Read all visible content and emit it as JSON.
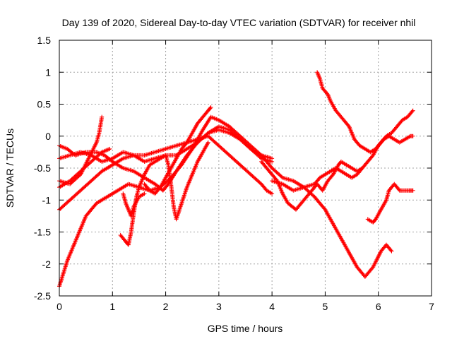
{
  "chart_data": {
    "type": "scatter",
    "title": "Day 139 of 2020, Sidereal Day-to-day VTEC variation (SDTVAR) for receiver nhil",
    "xlabel": "GPS time / hours",
    "ylabel": "SDTVAR / TECUs",
    "xlim": [
      0,
      7
    ],
    "ylim": [
      -2.5,
      1.5
    ],
    "xticks": [
      0,
      1,
      2,
      3,
      4,
      5,
      6,
      7
    ],
    "yticks": [
      -2.5,
      -2,
      -1.5,
      -1,
      -0.5,
      0,
      0.5,
      1,
      1.5
    ],
    "ytick_labels": [
      "-2.5",
      "-2",
      "-1.5",
      "-1",
      "-0.5",
      "0",
      "0.5",
      "1",
      "1.5"
    ],
    "grid": true,
    "marker": "plus",
    "color": "#ff0000",
    "series": [
      {
        "name": "s1",
        "points": [
          [
            0,
            -2.35
          ],
          [
            0.15,
            -1.95
          ],
          [
            0.35,
            -1.55
          ],
          [
            0.5,
            -1.25
          ],
          [
            0.7,
            -1.05
          ],
          [
            0.9,
            -0.95
          ],
          [
            1.1,
            -0.85
          ],
          [
            1.3,
            -0.75
          ],
          [
            1.5,
            -0.8
          ],
          [
            1.7,
            -0.85
          ],
          [
            1.9,
            -0.8
          ],
          [
            2.1,
            -0.65
          ],
          [
            2.3,
            -0.45
          ],
          [
            2.5,
            -0.2
          ],
          [
            2.7,
            0.1
          ],
          [
            2.85,
            0.3
          ],
          [
            3.0,
            0.25
          ],
          [
            3.2,
            0.15
          ],
          [
            3.4,
            0.0
          ],
          [
            3.6,
            -0.15
          ],
          [
            3.8,
            -0.3
          ],
          [
            4.0,
            -0.5
          ],
          [
            4.2,
            -0.65
          ],
          [
            4.4,
            -0.7
          ],
          [
            4.6,
            -0.8
          ],
          [
            4.8,
            -0.95
          ],
          [
            5.0,
            -1.15
          ],
          [
            5.2,
            -1.45
          ],
          [
            5.4,
            -1.75
          ],
          [
            5.6,
            -2.05
          ],
          [
            5.75,
            -2.2
          ],
          [
            5.9,
            -2.05
          ],
          [
            6.05,
            -1.8
          ],
          [
            6.15,
            -1.7
          ],
          [
            6.25,
            -1.8
          ]
        ]
      },
      {
        "name": "s2",
        "points": [
          [
            0,
            -1.15
          ],
          [
            0.2,
            -1.0
          ],
          [
            0.4,
            -0.85
          ],
          [
            0.6,
            -0.7
          ],
          [
            0.8,
            -0.55
          ],
          [
            1.0,
            -0.45
          ],
          [
            1.2,
            -0.35
          ],
          [
            1.4,
            -0.3
          ],
          [
            1.6,
            -0.3
          ],
          [
            1.8,
            -0.25
          ],
          [
            2.0,
            -0.2
          ],
          [
            2.2,
            -0.15
          ],
          [
            2.4,
            -0.1
          ],
          [
            2.6,
            -0.05
          ],
          [
            2.8,
            0.0
          ],
          [
            3.0,
            -0.15
          ],
          [
            3.2,
            -0.3
          ],
          [
            3.4,
            -0.45
          ],
          [
            3.6,
            -0.6
          ],
          [
            3.8,
            -0.75
          ],
          [
            3.9,
            -0.85
          ],
          [
            4.0,
            -0.9
          ]
        ]
      },
      {
        "name": "s3",
        "points": [
          [
            0,
            -0.15
          ],
          [
            0.15,
            -0.2
          ],
          [
            0.3,
            -0.3
          ],
          [
            0.5,
            -0.25
          ],
          [
            0.7,
            -0.25
          ],
          [
            0.85,
            -0.3
          ],
          [
            1.0,
            -0.4
          ],
          [
            1.2,
            -0.5
          ],
          [
            1.4,
            -0.55
          ],
          [
            1.6,
            -0.65
          ],
          [
            1.8,
            -0.75
          ],
          [
            1.95,
            -0.85
          ],
          [
            2.05,
            -0.75
          ],
          [
            2.2,
            -0.55
          ],
          [
            2.4,
            -0.3
          ],
          [
            2.6,
            -0.1
          ],
          [
            2.8,
            0.05
          ],
          [
            3.0,
            0.1
          ],
          [
            3.2,
            0.05
          ],
          [
            3.4,
            -0.05
          ],
          [
            3.6,
            -0.2
          ],
          [
            3.8,
            -0.35
          ],
          [
            4.0,
            -0.4
          ]
        ]
      },
      {
        "name": "s4",
        "points": [
          [
            0,
            -0.35
          ],
          [
            0.2,
            -0.3
          ],
          [
            0.4,
            -0.25
          ],
          [
            0.6,
            -0.3
          ],
          [
            0.8,
            -0.4
          ],
          [
            1.0,
            -0.35
          ],
          [
            1.2,
            -0.25
          ],
          [
            1.4,
            -0.3
          ],
          [
            1.6,
            -0.4
          ],
          [
            1.8,
            -0.35
          ],
          [
            2.0,
            -0.3
          ],
          [
            2.2,
            -0.3
          ],
          [
            2.4,
            -0.2
          ],
          [
            2.6,
            -0.1
          ],
          [
            2.8,
            0.05
          ],
          [
            3.0,
            0.15
          ],
          [
            3.2,
            0.1
          ],
          [
            3.4,
            -0.05
          ],
          [
            3.6,
            -0.2
          ],
          [
            3.8,
            -0.3
          ],
          [
            4.0,
            -0.35
          ]
        ]
      },
      {
        "name": "s5",
        "points": [
          [
            0,
            -0.7
          ],
          [
            0.2,
            -0.75
          ],
          [
            0.4,
            -0.6
          ],
          [
            0.55,
            -0.35
          ],
          [
            0.7,
            -0.1
          ],
          [
            0.75,
            0.05
          ],
          [
            0.8,
            0.3
          ]
        ]
      },
      {
        "name": "s6",
        "points": [
          [
            0,
            -0.8
          ],
          [
            0.2,
            -0.7
          ],
          [
            0.4,
            -0.55
          ],
          [
            0.6,
            -0.4
          ],
          [
            0.8,
            -0.25
          ],
          [
            0.95,
            -0.2
          ]
        ]
      },
      {
        "name": "s7",
        "points": [
          [
            1.2,
            -0.9
          ],
          [
            1.25,
            -1.05
          ],
          [
            1.3,
            -1.15
          ],
          [
            1.35,
            -1.25
          ],
          [
            1.4,
            -1.1
          ],
          [
            1.5,
            -0.95
          ],
          [
            1.6,
            -0.9
          ]
        ]
      },
      {
        "name": "s8",
        "points": [
          [
            1.15,
            -1.55
          ],
          [
            1.25,
            -1.65
          ],
          [
            1.3,
            -1.7
          ],
          [
            1.35,
            -1.5
          ],
          [
            1.4,
            -1.2
          ],
          [
            1.45,
            -0.95
          ],
          [
            1.5,
            -0.8
          ],
          [
            1.55,
            -0.7
          ],
          [
            1.6,
            -0.6
          ],
          [
            1.7,
            -0.45
          ],
          [
            1.8,
            -0.4
          ],
          [
            1.9,
            -0.35
          ],
          [
            2.0,
            -0.3
          ],
          [
            2.05,
            -0.45
          ],
          [
            2.1,
            -0.75
          ],
          [
            2.15,
            -1.1
          ],
          [
            2.2,
            -1.3
          ],
          [
            2.3,
            -1.05
          ],
          [
            2.4,
            -0.8
          ],
          [
            2.5,
            -0.6
          ],
          [
            2.6,
            -0.4
          ],
          [
            2.7,
            -0.25
          ],
          [
            2.8,
            -0.1
          ]
        ]
      },
      {
        "name": "s9",
        "points": [
          [
            1.6,
            -0.75
          ],
          [
            1.7,
            -0.85
          ],
          [
            1.8,
            -0.9
          ],
          [
            1.9,
            -0.8
          ],
          [
            2.0,
            -0.65
          ],
          [
            2.1,
            -0.5
          ],
          [
            2.2,
            -0.35
          ],
          [
            2.3,
            -0.2
          ],
          [
            2.4,
            -0.1
          ],
          [
            2.5,
            0.05
          ],
          [
            2.6,
            0.2
          ],
          [
            2.7,
            0.3
          ],
          [
            2.8,
            0.4
          ],
          [
            2.85,
            0.45
          ]
        ]
      },
      {
        "name": "s10",
        "points": [
          [
            4.0,
            -0.7
          ],
          [
            4.2,
            -0.75
          ],
          [
            4.4,
            -0.85
          ],
          [
            4.6,
            -0.8
          ],
          [
            4.8,
            -0.75
          ],
          [
            4.9,
            -0.65
          ],
          [
            5.0,
            -0.6
          ],
          [
            5.1,
            -0.55
          ],
          [
            5.2,
            -0.5
          ],
          [
            5.3,
            -0.55
          ],
          [
            5.4,
            -0.6
          ],
          [
            5.5,
            -0.65
          ],
          [
            5.6,
            -0.6
          ],
          [
            5.7,
            -0.5
          ],
          [
            5.8,
            -0.4
          ],
          [
            5.9,
            -0.3
          ],
          [
            6.0,
            -0.15
          ],
          [
            6.1,
            -0.05
          ],
          [
            6.2,
            0.0
          ],
          [
            6.3,
            -0.05
          ],
          [
            6.4,
            -0.1
          ],
          [
            6.5,
            -0.05
          ],
          [
            6.6,
            0.0
          ],
          [
            6.65,
            0.0
          ]
        ]
      },
      {
        "name": "s11",
        "points": [
          [
            3.8,
            -0.4
          ],
          [
            3.9,
            -0.5
          ],
          [
            4.0,
            -0.6
          ],
          [
            4.1,
            -0.7
          ],
          [
            4.2,
            -0.9
          ],
          [
            4.3,
            -1.05
          ],
          [
            4.45,
            -1.15
          ],
          [
            4.6,
            -1.0
          ],
          [
            4.75,
            -0.85
          ],
          [
            4.85,
            -0.75
          ],
          [
            4.95,
            -0.85
          ],
          [
            5.05,
            -0.7
          ],
          [
            5.15,
            -0.6
          ],
          [
            5.25,
            -0.45
          ],
          [
            5.3,
            -0.4
          ],
          [
            5.4,
            -0.45
          ],
          [
            5.5,
            -0.5
          ],
          [
            5.6,
            -0.55
          ],
          [
            5.7,
            -0.5
          ]
        ]
      },
      {
        "name": "s12",
        "points": [
          [
            4.85,
            1.0
          ],
          [
            4.9,
            0.9
          ],
          [
            4.95,
            0.75
          ],
          [
            5.05,
            0.65
          ],
          [
            5.1,
            0.55
          ],
          [
            5.2,
            0.4
          ],
          [
            5.35,
            0.25
          ],
          [
            5.45,
            0.15
          ],
          [
            5.55,
            -0.05
          ],
          [
            5.65,
            -0.15
          ],
          [
            5.75,
            -0.2
          ],
          [
            5.85,
            -0.25
          ],
          [
            5.95,
            -0.2
          ],
          [
            6.05,
            -0.1
          ],
          [
            6.15,
            0.0
          ],
          [
            6.25,
            0.05
          ],
          [
            6.35,
            0.15
          ],
          [
            6.45,
            0.25
          ],
          [
            6.55,
            0.3
          ],
          [
            6.65,
            0.4
          ]
        ]
      },
      {
        "name": "s13",
        "points": [
          [
            5.8,
            -1.3
          ],
          [
            5.9,
            -1.35
          ],
          [
            5.95,
            -1.3
          ],
          [
            6.05,
            -1.15
          ],
          [
            6.15,
            -1.0
          ],
          [
            6.2,
            -0.85
          ],
          [
            6.3,
            -0.75
          ],
          [
            6.4,
            -0.85
          ],
          [
            6.5,
            -0.85
          ],
          [
            6.6,
            -0.85
          ],
          [
            6.65,
            -0.85
          ]
        ]
      }
    ]
  }
}
